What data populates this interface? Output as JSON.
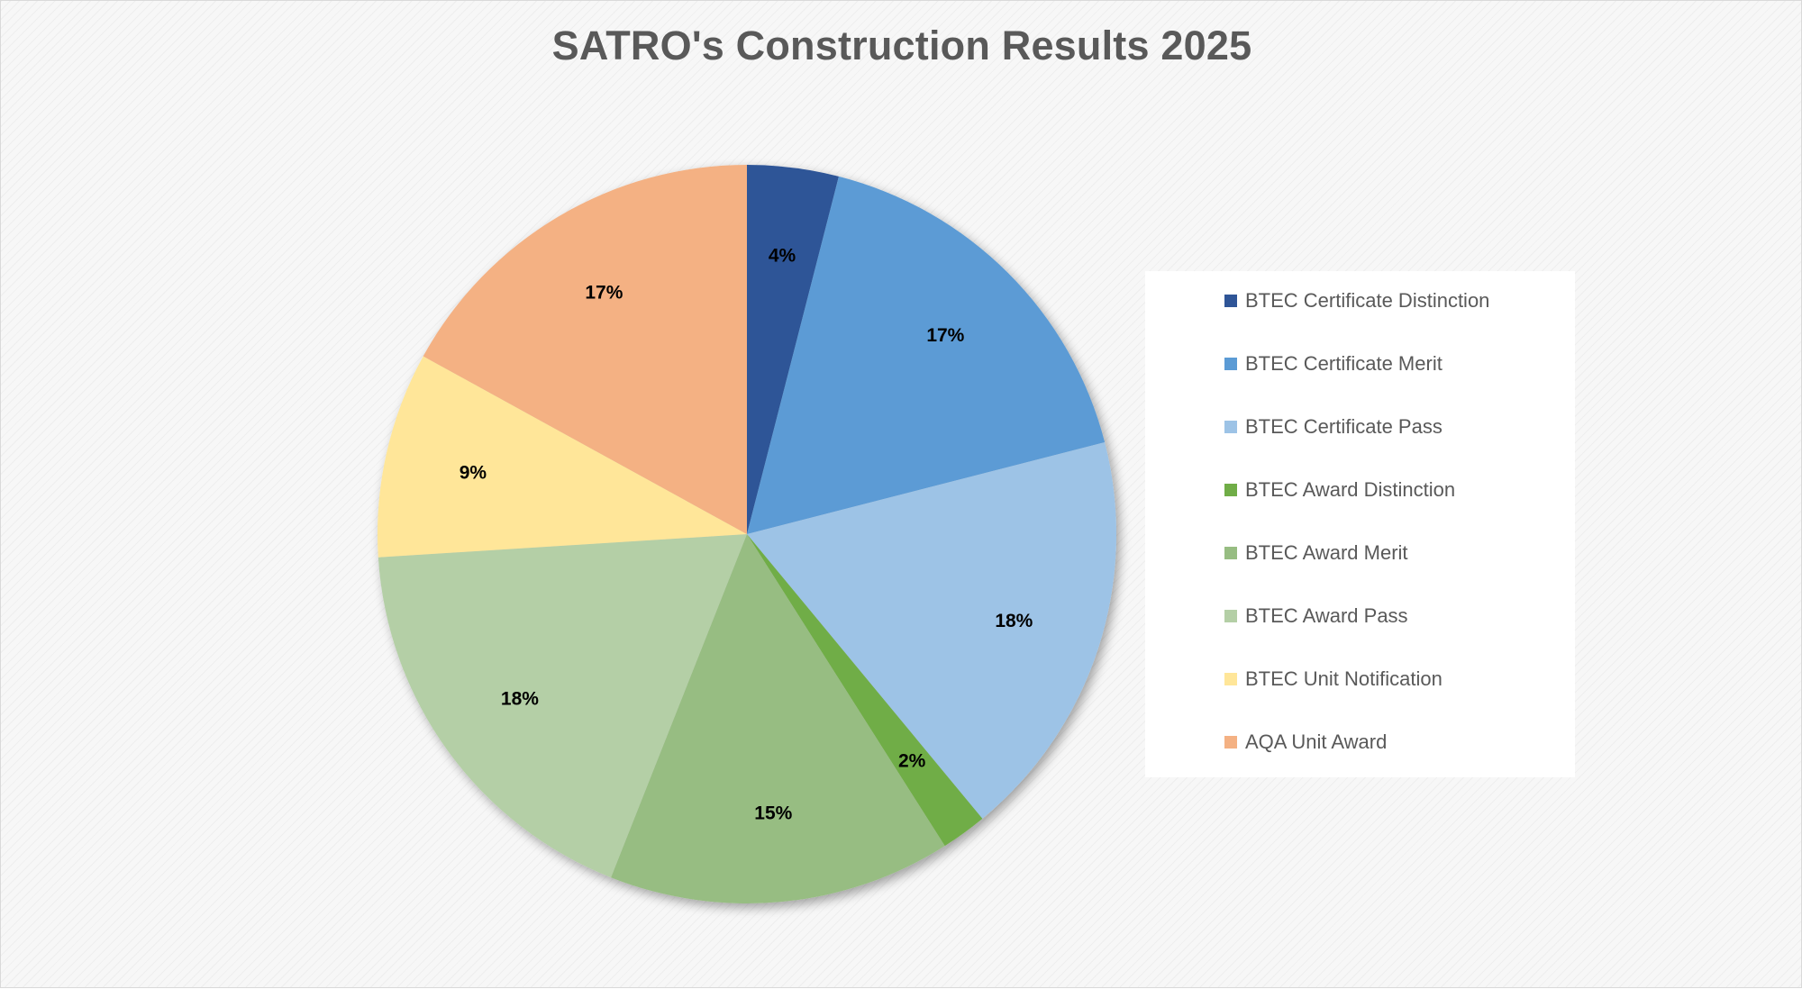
{
  "chart_data": {
    "type": "pie",
    "title": "SATRO's Construction Results 2025",
    "categories": [
      "BTEC Certificate Distinction",
      "BTEC Certificate Merit",
      "BTEC Certificate Pass",
      "BTEC Award Distinction",
      "BTEC Award Merit",
      "BTEC Award Pass",
      "BTEC Unit Notification",
      "AQA Unit Award"
    ],
    "values": [
      4,
      17,
      18,
      2,
      15,
      18,
      9,
      17
    ],
    "value_labels": [
      "4%",
      "17%",
      "18%",
      "2%",
      "15%",
      "18%",
      "9%",
      "17%"
    ],
    "colors": [
      "#2f5597",
      "#5b9bd5",
      "#9dc3e6",
      "#70ad47",
      "#97bd82",
      "#b4cfa6",
      "#ffe699",
      "#f4b183"
    ],
    "start_angle": "12 o'clock",
    "direction": "clockwise",
    "legend_position": "right"
  }
}
